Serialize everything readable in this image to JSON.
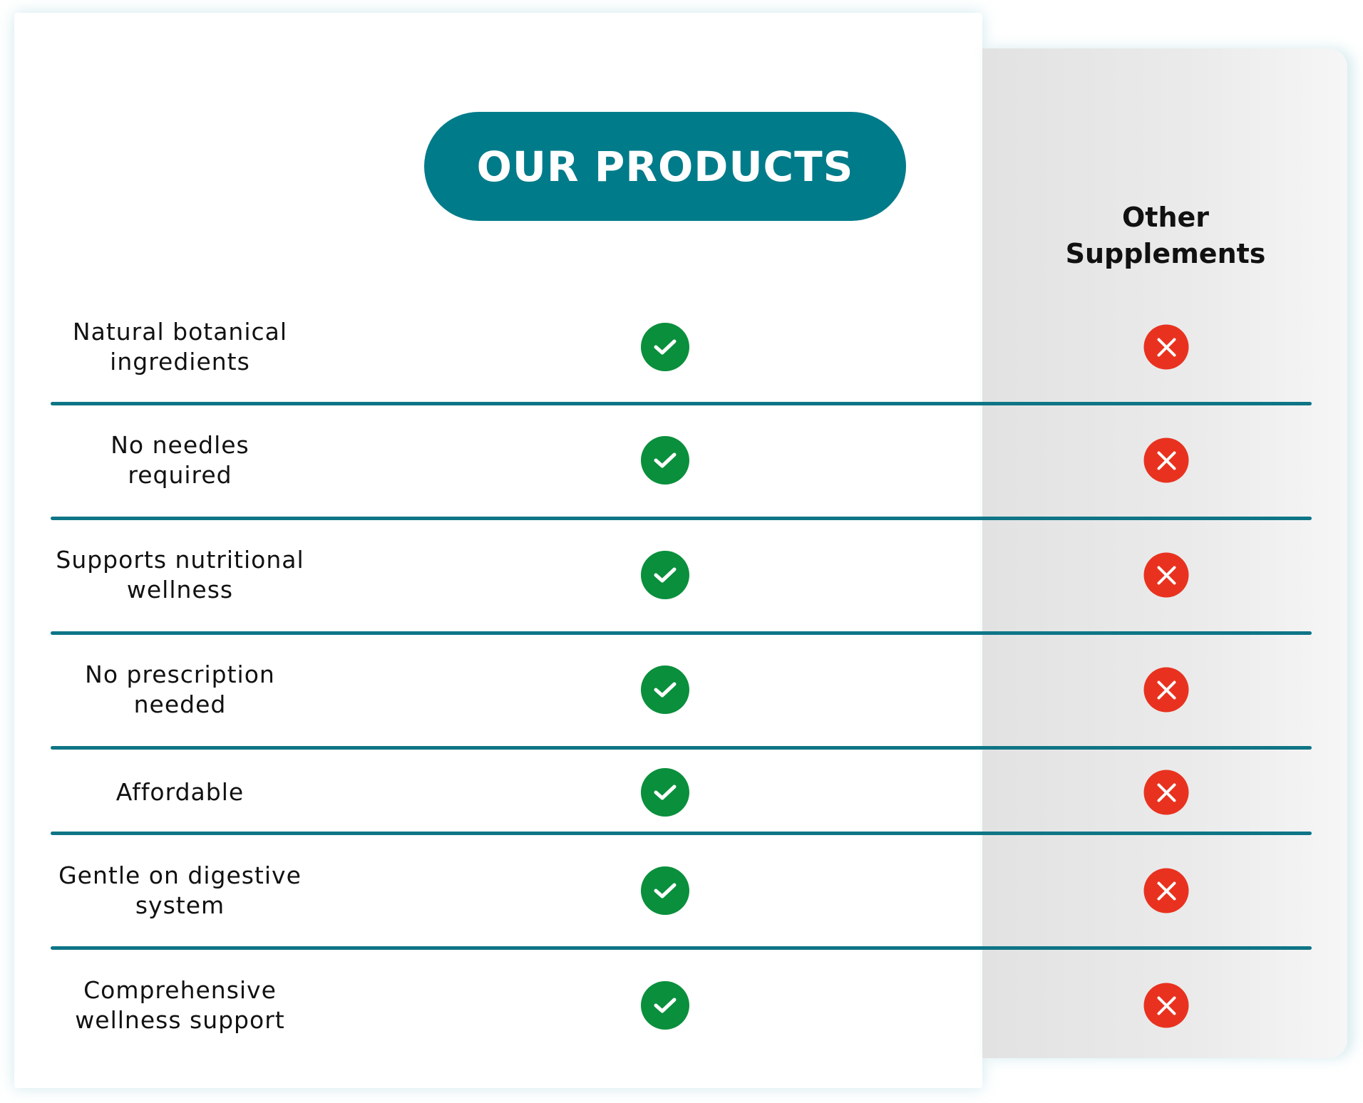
{
  "header": {
    "our_products": "OUR PRODUCTS",
    "other_line1": "Other",
    "other_line2": "Supplements"
  },
  "colors": {
    "accent": "#007b8a",
    "check": "#0a8f3c",
    "cross": "#e8321f",
    "divider": "#0e7586"
  },
  "rows": [
    {
      "line1": "Natural botanical",
      "line2": "ingredients",
      "ours": "check-icon",
      "others": "x-icon"
    },
    {
      "line1": "No needles",
      "line2": "required",
      "ours": "check-icon",
      "others": "x-icon"
    },
    {
      "line1": "Supports nutritional",
      "line2": "wellness",
      "ours": "check-icon",
      "others": "x-icon"
    },
    {
      "line1": "No prescription",
      "line2": "needed",
      "ours": "check-icon",
      "others": "x-icon"
    },
    {
      "line1": "Affordable",
      "line2": "",
      "ours": "check-icon",
      "others": "x-icon"
    },
    {
      "line1": "Gentle on digestive",
      "line2": "system",
      "ours": "check-icon",
      "others": "x-icon"
    },
    {
      "line1": "Comprehensive",
      "line2": "wellness support",
      "ours": "check-icon",
      "others": "x-icon"
    }
  ]
}
